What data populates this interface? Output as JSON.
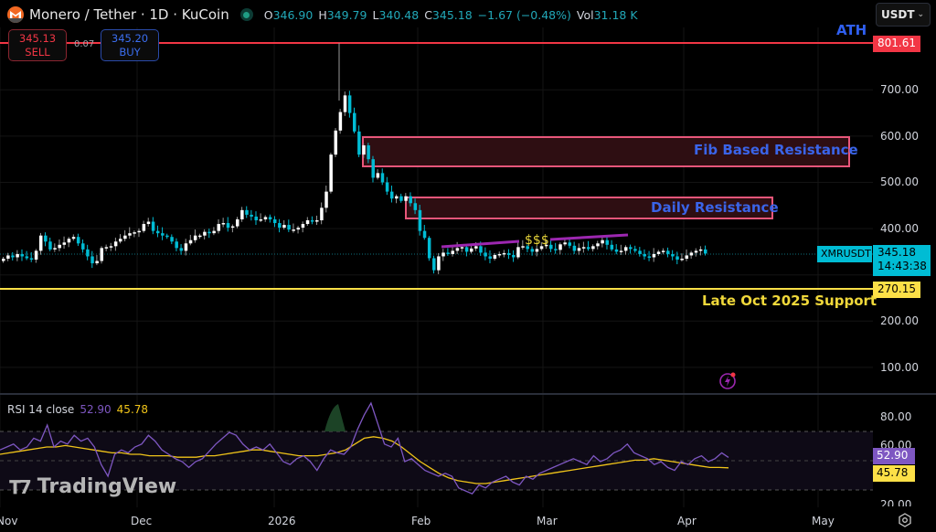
{
  "header": {
    "title": "Monero / Tether · 1D · KuCoin",
    "ohlc": [
      {
        "key": "O",
        "value": "346.90"
      },
      {
        "key": "H",
        "value": "349.79"
      },
      {
        "key": "L",
        "value": "340.48"
      },
      {
        "key": "C",
        "value": "345.18"
      }
    ],
    "change": "−1.67 (−0.48%)",
    "volume_label": "Vol",
    "volume_value": "31.18 K"
  },
  "trade": {
    "sell_price": "345.13",
    "sell_label": "SELL",
    "spread": "0.07",
    "buy_price": "345.20",
    "buy_label": "BUY"
  },
  "currency_select": {
    "value": "USDT"
  },
  "price_axis": {
    "ticks": [
      "700.00",
      "600.00",
      "500.00",
      "400.00",
      "200.00",
      "100.00"
    ],
    "ath_tag": "801.61",
    "support_tag": "270.15",
    "symbol_tag": "XMRUSDT",
    "last_price": "345.18",
    "countdown": "14:43:38"
  },
  "annotations": {
    "ath": "ATH",
    "fib": "Fib Based Resistance",
    "daily": "Daily Resistance",
    "dollars": "$$$",
    "support": "Late Oct 2025 Support"
  },
  "rsi": {
    "label": "RSI 14 close",
    "value": "52.90",
    "ma_value": "45.78",
    "axis_ticks": [
      "80.00",
      "60.00",
      "20.00"
    ]
  },
  "time_axis": [
    "Nov",
    "Dec",
    "2026",
    "Feb",
    "Mar",
    "Apr",
    "May"
  ],
  "watermark": "TradingView",
  "colors": {
    "up": "#ffffff",
    "down": "#00bcd4",
    "ath_line": "#f23645",
    "support_line": "#fde047",
    "zone_border": "#e8567a",
    "zone_fill": "#2e0e12",
    "trendline": "#9c27b0",
    "rsi_line": "#7e57c2",
    "rsi_ma": "#f0c419"
  }
}
